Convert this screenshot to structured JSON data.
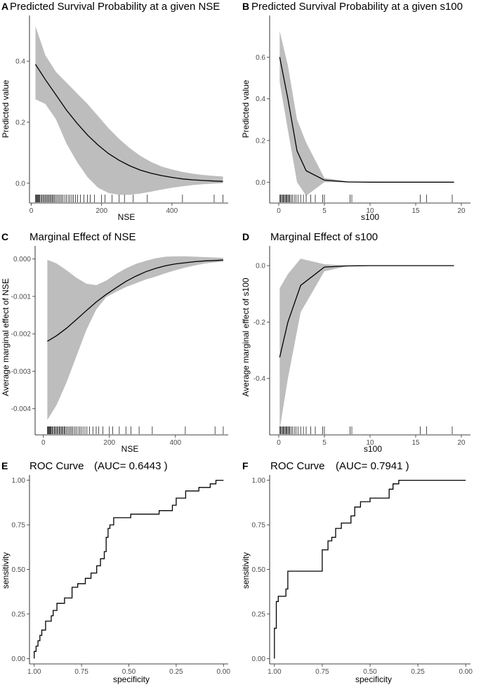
{
  "chart_data": [
    {
      "id": "A",
      "type": "line",
      "panel_letter": "A",
      "title": "Predicted Survival Probability at a given NSE",
      "xlabel": "NSE",
      "ylabel": "Predicted value",
      "xlim": [
        -5,
        560
      ],
      "ylim": [
        -0.065,
        0.55
      ],
      "xticks": [
        0,
        200,
        400
      ],
      "xtick_labels": [
        "0",
        "200",
        "400"
      ],
      "yticks": [
        0.0,
        0.2,
        0.4
      ],
      "ytick_labels": [
        "0.0",
        "0.2",
        "0.4"
      ],
      "x": [
        12,
        40,
        70,
        100,
        130,
        160,
        190,
        220,
        250,
        280,
        310,
        340,
        370,
        400,
        430,
        460,
        490,
        520,
        545
      ],
      "y": [
        0.39,
        0.34,
        0.29,
        0.24,
        0.197,
        0.158,
        0.125,
        0.097,
        0.075,
        0.057,
        0.043,
        0.033,
        0.025,
        0.019,
        0.014,
        0.011,
        0.009,
        0.007,
        0.006
      ],
      "lower": [
        0.275,
        0.26,
        0.21,
        0.13,
        0.07,
        0.02,
        -0.015,
        -0.032,
        -0.038,
        -0.038,
        -0.034,
        -0.028,
        -0.021,
        -0.015,
        -0.01,
        -0.006,
        -0.003,
        -0.001,
        0.0
      ],
      "upper": [
        0.515,
        0.42,
        0.365,
        0.33,
        0.295,
        0.26,
        0.22,
        0.18,
        0.145,
        0.115,
        0.09,
        0.07,
        0.055,
        0.045,
        0.037,
        0.031,
        0.027,
        0.024,
        0.022
      ],
      "rug": [
        12,
        14,
        16,
        18,
        20,
        22,
        24,
        27,
        30,
        33,
        36,
        39,
        42,
        45,
        48,
        51,
        54,
        57,
        60,
        63,
        66,
        70,
        74,
        78,
        82,
        86,
        90,
        95,
        100,
        105,
        110,
        115,
        120,
        126,
        132,
        140,
        150,
        160,
        168,
        180,
        200,
        210,
        230,
        250,
        265,
        290,
        330,
        430,
        520,
        545
      ]
    },
    {
      "id": "B",
      "type": "line",
      "panel_letter": "B",
      "title": "Predicted Survival Probability at a given s100",
      "xlabel": "s100",
      "ylabel": "Predicted value",
      "xlim": [
        -1,
        21
      ],
      "ylim": [
        -0.1,
        0.8
      ],
      "xticks": [
        0,
        5,
        10,
        15,
        20
      ],
      "xtick_labels": [
        "0",
        "5",
        "10",
        "15",
        "20"
      ],
      "yticks": [
        0.0,
        0.2,
        0.4,
        0.6
      ],
      "ytick_labels": [
        "0.0",
        "0.2",
        "0.4",
        "0.6"
      ],
      "x": [
        0.1,
        1.0,
        2.0,
        3.0,
        5.0,
        7.5,
        10,
        15,
        19.2
      ],
      "y": [
        0.6,
        0.4,
        0.15,
        0.055,
        0.01,
        0.001,
        0.0,
        0.0,
        0.0
      ],
      "lower": [
        0.48,
        0.25,
        0.0,
        -0.065,
        0.0,
        0.0,
        0.0,
        0.0,
        0.0
      ],
      "upper": [
        0.725,
        0.56,
        0.3,
        0.19,
        0.02,
        0.005,
        0.002,
        0.001,
        0.001
      ],
      "rug": [
        0.1,
        0.2,
        0.3,
        0.4,
        0.5,
        0.6,
        0.7,
        0.8,
        0.9,
        1.0,
        1.1,
        1.2,
        1.35,
        1.5,
        1.7,
        1.9,
        2.1,
        2.4,
        2.7,
        3.0,
        3.5,
        4.0,
        4.8,
        5.0,
        7.8,
        8.0,
        15.5,
        16.2,
        19.0
      ]
    },
    {
      "id": "C",
      "type": "line",
      "panel_letter": "C",
      "title": "Marginal Effect of NSE",
      "xlabel": "NSE",
      "ylabel": "Average marginal effect of NSE",
      "xlim": [
        -25,
        560
      ],
      "ylim": [
        -0.0047,
        0.00035
      ],
      "xticks": [
        0,
        200,
        400
      ],
      "xtick_labels": [
        "0",
        "200",
        "400"
      ],
      "yticks": [
        0.0,
        -0.001,
        -0.002,
        -0.003,
        -0.004
      ],
      "ytick_labels": [
        "0.000",
        "-0.001",
        "-0.002",
        "-0.003",
        "-0.004"
      ],
      "x": [
        12,
        40,
        70,
        100,
        130,
        160,
        190,
        220,
        250,
        280,
        310,
        340,
        370,
        400,
        430,
        460,
        490,
        520,
        545
      ],
      "y": [
        -0.0022,
        -0.00205,
        -0.00185,
        -0.00162,
        -0.00138,
        -0.00115,
        -0.00095,
        -0.00077,
        -0.0006,
        -0.00046,
        -0.00034,
        -0.00025,
        -0.00018,
        -0.00013,
        -0.0001,
        -7e-05,
        -5e-05,
        -4e-05,
        -3e-05
      ],
      "lower": [
        -0.0043,
        -0.0039,
        -0.0033,
        -0.0026,
        -0.0019,
        -0.00135,
        -0.00102,
        -0.00088,
        -0.00075,
        -0.00065,
        -0.00055,
        -0.00047,
        -0.00038,
        -0.0003,
        -0.00023,
        -0.00017,
        -0.00012,
        -9e-05,
        -7e-05
      ],
      "upper": [
        -2e-05,
        -0.00012,
        -0.0003,
        -0.0005,
        -0.00066,
        -0.0007,
        -0.00058,
        -0.0004,
        -0.00025,
        -0.00013,
        -5e-05,
        2e-05,
        6e-05,
        7e-05,
        7e-05,
        6e-05,
        5e-05,
        4e-05,
        3e-05
      ],
      "rug": [
        12,
        14,
        16,
        18,
        20,
        22,
        24,
        27,
        30,
        33,
        36,
        39,
        42,
        45,
        48,
        51,
        54,
        57,
        60,
        63,
        66,
        70,
        74,
        78,
        82,
        86,
        90,
        95,
        100,
        105,
        110,
        115,
        120,
        126,
        132,
        140,
        150,
        160,
        168,
        180,
        200,
        210,
        230,
        250,
        265,
        290,
        330,
        430,
        520,
        545
      ]
    },
    {
      "id": "D",
      "type": "line",
      "panel_letter": "D",
      "title": "Marginal Effect of s100",
      "xlabel": "s100",
      "ylabel": "Average marginal effect of s100",
      "xlim": [
        -1,
        21
      ],
      "ylim": [
        -0.6,
        0.07
      ],
      "xticks": [
        0,
        5,
        10,
        15,
        20
      ],
      "xtick_labels": [
        "0",
        "5",
        "10",
        "15",
        "20"
      ],
      "yticks": [
        0.0,
        -0.2,
        -0.4
      ],
      "ytick_labels": [
        "0.0",
        "-0.2",
        "-0.4"
      ],
      "x": [
        0.1,
        1.0,
        2.4,
        5.0,
        7.5,
        10,
        15,
        19.2
      ],
      "y": [
        -0.325,
        -0.2,
        -0.07,
        -0.005,
        -0.001,
        0.0,
        0.0,
        0.0
      ],
      "lower": [
        -0.58,
        -0.4,
        -0.165,
        -0.02,
        -0.002,
        -0.001,
        0.0,
        0.0
      ],
      "upper": [
        -0.08,
        -0.03,
        0.025,
        0.005,
        0.001,
        0.0,
        0.0,
        0.0
      ],
      "rug": [
        0.1,
        0.2,
        0.3,
        0.4,
        0.5,
        0.6,
        0.7,
        0.8,
        0.9,
        1.0,
        1.1,
        1.2,
        1.35,
        1.5,
        1.7,
        1.9,
        2.1,
        2.4,
        2.7,
        3.0,
        3.5,
        4.0,
        4.8,
        5.0,
        7.8,
        8.0,
        15.5,
        16.2,
        19.0
      ]
    },
    {
      "id": "E",
      "type": "roc",
      "panel_letter": "E",
      "title": "ROC Curve",
      "auc_text": "(AUC= 0.6443 )",
      "xlabel": "specificity",
      "ylabel": "sensitivity",
      "xlim": [
        1.025,
        -0.025
      ],
      "ylim": [
        -0.03,
        1.03
      ],
      "xticks": [
        1.0,
        0.75,
        0.5,
        0.25,
        0.0
      ],
      "xtick_labels": [
        "1.00",
        "0.75",
        "0.50",
        "0.25",
        "0.00"
      ],
      "yticks": [
        0.0,
        0.25,
        0.5,
        0.75,
        1.0
      ],
      "ytick_labels": [
        "0.00",
        "0.25",
        "0.50",
        "0.75",
        "1.00"
      ],
      "specificity": [
        1.0,
        1.0,
        0.99,
        0.99,
        0.98,
        0.98,
        0.97,
        0.97,
        0.96,
        0.96,
        0.94,
        0.94,
        0.91,
        0.91,
        0.9,
        0.9,
        0.88,
        0.88,
        0.84,
        0.84,
        0.8,
        0.8,
        0.77,
        0.77,
        0.73,
        0.73,
        0.7,
        0.7,
        0.67,
        0.67,
        0.65,
        0.65,
        0.63,
        0.63,
        0.62,
        0.62,
        0.61,
        0.61,
        0.6,
        0.6,
        0.58,
        0.58,
        0.49,
        0.49,
        0.34,
        0.34,
        0.27,
        0.27,
        0.25,
        0.25,
        0.2,
        0.2,
        0.13,
        0.13,
        0.07,
        0.07,
        0.04,
        0.04,
        0.0
      ],
      "sensitivity": [
        0.0,
        0.04,
        0.04,
        0.07,
        0.07,
        0.1,
        0.1,
        0.13,
        0.13,
        0.16,
        0.16,
        0.21,
        0.21,
        0.24,
        0.24,
        0.27,
        0.27,
        0.31,
        0.31,
        0.34,
        0.34,
        0.4,
        0.4,
        0.42,
        0.42,
        0.45,
        0.45,
        0.48,
        0.48,
        0.52,
        0.52,
        0.56,
        0.56,
        0.6,
        0.6,
        0.68,
        0.68,
        0.73,
        0.73,
        0.75,
        0.75,
        0.79,
        0.79,
        0.81,
        0.81,
        0.83,
        0.83,
        0.86,
        0.86,
        0.9,
        0.9,
        0.94,
        0.94,
        0.96,
        0.96,
        0.98,
        0.98,
        1.0,
        1.0
      ]
    },
    {
      "id": "F",
      "type": "roc",
      "panel_letter": "F",
      "title": "ROC Curve",
      "auc_text": "(AUC= 0.7941 )",
      "xlabel": "specificity",
      "ylabel": "sensitivity",
      "xlim": [
        1.025,
        -0.025
      ],
      "ylim": [
        -0.03,
        1.03
      ],
      "xticks": [
        1.0,
        0.75,
        0.5,
        0.25,
        0.0
      ],
      "xtick_labels": [
        "1.00",
        "0.75",
        "0.50",
        "0.25",
        "0.00"
      ],
      "yticks": [
        0.0,
        0.25,
        0.5,
        0.75,
        1.0
      ],
      "ytick_labels": [
        "0.00",
        "0.25",
        "0.50",
        "0.75",
        "1.00"
      ],
      "specificity": [
        1.0,
        1.0,
        0.99,
        0.99,
        0.98,
        0.98,
        0.94,
        0.94,
        0.93,
        0.93,
        0.9,
        0.9,
        0.75,
        0.75,
        0.72,
        0.72,
        0.7,
        0.7,
        0.68,
        0.68,
        0.65,
        0.65,
        0.6,
        0.6,
        0.58,
        0.58,
        0.55,
        0.55,
        0.5,
        0.5,
        0.4,
        0.4,
        0.38,
        0.38,
        0.35,
        0.35,
        0.0
      ],
      "sensitivity": [
        0.0,
        0.17,
        0.17,
        0.32,
        0.32,
        0.35,
        0.35,
        0.39,
        0.39,
        0.49,
        0.49,
        0.49,
        0.49,
        0.61,
        0.61,
        0.66,
        0.66,
        0.68,
        0.68,
        0.73,
        0.73,
        0.76,
        0.76,
        0.8,
        0.8,
        0.85,
        0.85,
        0.88,
        0.88,
        0.9,
        0.9,
        0.95,
        0.95,
        0.98,
        0.98,
        1.0,
        1.0
      ]
    }
  ]
}
